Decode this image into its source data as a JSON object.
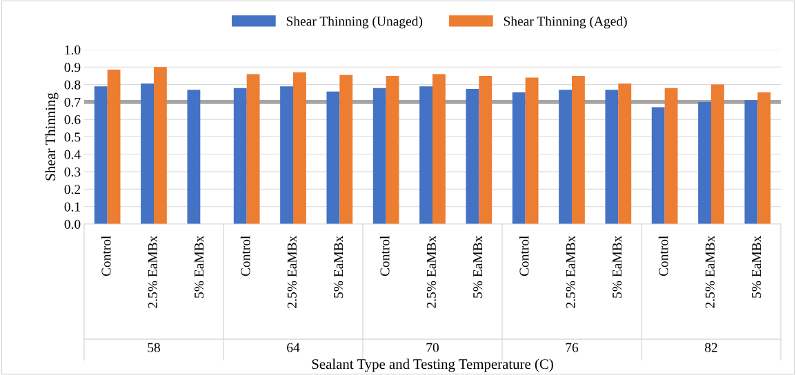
{
  "chart_data": {
    "type": "bar",
    "xlabel": "Sealant Type and Testing Temperature (C)",
    "ylabel": "Shear Thinning",
    "categories": [
      "Control",
      "2.5% EaMBx",
      "5% EaMBx",
      "Control",
      "2.5% EaMBx",
      "5% EaMBx",
      "Control",
      "2.5% EaMBx",
      "5% EaMBx",
      "Control",
      "2.5% EaMBx",
      "5% EaMBx",
      "Control",
      "2.5% EaMBx",
      "5% EaMBx"
    ],
    "series": [
      {
        "name": "Shear Thinning (Unaged)",
        "color": "#4472c4",
        "values": [
          0.79,
          0.805,
          0.77,
          0.78,
          0.79,
          0.76,
          0.78,
          0.79,
          0.775,
          0.755,
          0.77,
          0.77,
          0.67,
          0.7,
          0.71
        ]
      },
      {
        "name": "Shear Thinning (Aged)",
        "color": "#ed7d31",
        "values": [
          0.885,
          0.9,
          null,
          0.86,
          0.87,
          0.855,
          0.85,
          0.86,
          0.85,
          0.84,
          0.85,
          0.805,
          0.78,
          0.8,
          0.755
        ]
      }
    ],
    "ylim": [
      0,
      1.0
    ],
    "yticks": [
      {
        "value": 0,
        "label": "0.0"
      },
      0.1,
      0.2,
      0.3,
      0.4,
      0.5,
      0.6,
      0.7,
      0.8,
      0.9,
      {
        "value": 1.0,
        "label": "1.0"
      }
    ],
    "ref_lines": [
      {
        "axis": "y",
        "value": 0.7,
        "color": "#a5a5a5"
      }
    ],
    "annotations": [
      "58",
      "64",
      "70",
      "76",
      "82"
    ],
    "grid": "y",
    "legend": "top"
  }
}
